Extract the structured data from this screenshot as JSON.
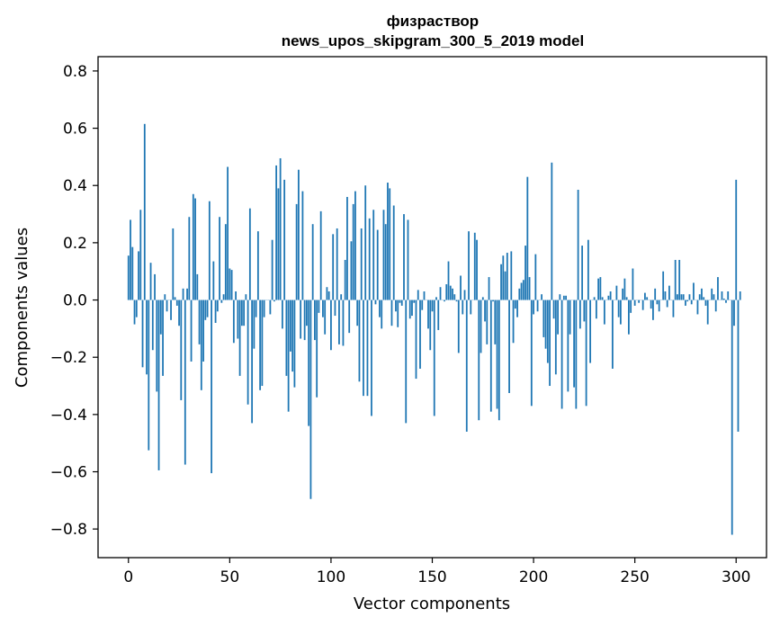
{
  "chart_data": {
    "type": "bar",
    "title": "физраствор",
    "subtitle": "news_upos_skipgram_300_5_2019 model",
    "xlabel": "Vector components",
    "ylabel": "Components values",
    "xlim": [
      -15,
      315
    ],
    "ylim": [
      -0.9,
      0.85
    ],
    "xticks": [
      0,
      50,
      100,
      150,
      200,
      250,
      300
    ],
    "xtick_labels": [
      "0",
      "50",
      "100",
      "150",
      "200",
      "250",
      "300"
    ],
    "yticks": [
      -0.8,
      -0.6,
      -0.4,
      -0.2,
      0.0,
      0.2,
      0.4,
      0.6,
      0.8
    ],
    "ytick_labels": [
      "−0.8",
      "−0.6",
      "−0.4",
      "−0.2",
      "0.0",
      "0.2",
      "0.4",
      "0.6",
      "0.8"
    ],
    "grid": false,
    "bar_color": "#1f77b4",
    "values": [
      0.155,
      0.28,
      0.185,
      -0.085,
      -0.06,
      0.17,
      0.315,
      -0.235,
      0.615,
      -0.26,
      -0.525,
      0.13,
      -0.175,
      0.09,
      -0.32,
      -0.595,
      -0.12,
      -0.265,
      0.02,
      -0.04,
      0.0,
      -0.07,
      0.25,
      0.01,
      -0.02,
      -0.09,
      -0.35,
      0.04,
      -0.575,
      0.04,
      0.29,
      -0.215,
      0.37,
      0.355,
      0.09,
      -0.155,
      -0.315,
      -0.215,
      -0.07,
      -0.06,
      0.345,
      -0.605,
      0.135,
      -0.08,
      -0.04,
      0.29,
      -0.01,
      0.02,
      0.265,
      0.465,
      0.11,
      0.105,
      -0.15,
      0.03,
      -0.135,
      -0.265,
      -0.09,
      -0.09,
      0.02,
      -0.365,
      0.32,
      -0.43,
      -0.17,
      -0.06,
      0.24,
      -0.315,
      -0.3,
      -0.06,
      0.0,
      0.0,
      -0.05,
      0.21,
      -0.005,
      0.47,
      0.39,
      0.495,
      -0.1,
      0.42,
      -0.265,
      -0.39,
      -0.18,
      -0.25,
      -0.305,
      0.335,
      0.455,
      -0.135,
      0.38,
      -0.14,
      -0.09,
      -0.44,
      -0.695,
      0.265,
      -0.14,
      -0.34,
      -0.045,
      0.31,
      -0.06,
      -0.12,
      0.045,
      0.03,
      -0.175,
      0.23,
      -0.055,
      0.25,
      -0.155,
      0.02,
      -0.16,
      0.14,
      0.36,
      -0.115,
      0.205,
      0.335,
      0.38,
      -0.09,
      -0.285,
      0.25,
      -0.335,
      0.4,
      -0.335,
      0.285,
      -0.405,
      0.315,
      -0.015,
      0.245,
      -0.06,
      -0.1,
      0.315,
      0.265,
      0.41,
      0.39,
      -0.09,
      0.33,
      -0.04,
      -0.095,
      -0.01,
      -0.02,
      0.3,
      -0.43,
      0.28,
      -0.065,
      -0.055,
      -0.01,
      -0.275,
      0.035,
      -0.24,
      -0.035,
      0.03,
      0.0,
      -0.1,
      -0.175,
      -0.04,
      -0.405,
      0.01,
      -0.105,
      0.045,
      0.0,
      -0.005,
      0.055,
      0.135,
      0.05,
      0.04,
      0.02,
      -0.005,
      -0.185,
      0.085,
      -0.05,
      0.035,
      -0.46,
      0.24,
      -0.05,
      0.0,
      0.235,
      0.21,
      -0.42,
      -0.185,
      0.01,
      -0.075,
      -0.155,
      0.08,
      -0.39,
      -0.005,
      -0.155,
      -0.38,
      -0.42,
      0.125,
      0.155,
      0.1,
      0.165,
      -0.325,
      0.17,
      -0.15,
      -0.03,
      -0.06,
      0.04,
      0.06,
      0.07,
      0.19,
      0.43,
      0.08,
      -0.37,
      -0.05,
      0.16,
      -0.04,
      0.0,
      0.02,
      -0.13,
      -0.17,
      -0.22,
      -0.3,
      0.48,
      -0.065,
      -0.26,
      -0.12,
      0.02,
      -0.38,
      0.015,
      0.015,
      -0.32,
      -0.12,
      0.0,
      -0.305,
      -0.38,
      0.385,
      -0.1,
      0.19,
      -0.075,
      -0.37,
      0.21,
      -0.22,
      0.0,
      0.01,
      -0.065,
      0.075,
      0.08,
      0.01,
      -0.085,
      0.0,
      0.015,
      0.03,
      -0.24,
      0.0,
      0.05,
      -0.06,
      -0.085,
      0.04,
      0.075,
      0.01,
      -0.12,
      -0.045,
      0.11,
      -0.02,
      0.0,
      -0.01,
      0.0,
      -0.035,
      0.025,
      0.01,
      0.0,
      -0.03,
      -0.07,
      0.04,
      -0.015,
      -0.04,
      0.0,
      0.1,
      0.03,
      -0.025,
      0.05,
      0.0,
      -0.06,
      0.14,
      0.02,
      0.14,
      0.02,
      0.02,
      -0.02,
      -0.005,
      0.02,
      -0.015,
      0.06,
      0.0,
      -0.05,
      0.02,
      0.04,
      0.01,
      -0.02,
      -0.085,
      0.0,
      0.04,
      0.02,
      -0.04,
      0.08,
      0.0,
      0.03,
      0.005,
      -0.01,
      0.03,
      0.0,
      -0.82,
      -0.09,
      0.42,
      -0.46,
      0.03
    ]
  }
}
